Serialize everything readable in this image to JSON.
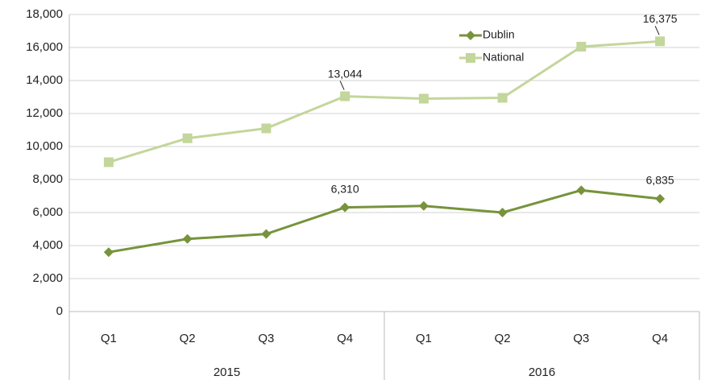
{
  "chart_data": {
    "type": "line",
    "categories": [
      "Q1",
      "Q2",
      "Q3",
      "Q4",
      "Q1",
      "Q2",
      "Q3",
      "Q4"
    ],
    "category_groups": [
      "2015",
      "2016"
    ],
    "series": [
      {
        "name": "Dublin",
        "color": "#77933c",
        "marker": "diamond",
        "values": [
          3600,
          4400,
          4700,
          6310,
          6400,
          6000,
          7350,
          6835
        ],
        "value_labels": [
          null,
          null,
          null,
          "6,310",
          null,
          null,
          null,
          "6,835"
        ]
      },
      {
        "name": "National",
        "color": "#c3d69b",
        "marker": "square",
        "values": [
          9050,
          10500,
          11100,
          13044,
          12900,
          12950,
          16050,
          16375
        ],
        "value_labels": [
          null,
          null,
          null,
          "13,044",
          null,
          null,
          null,
          "16,375"
        ]
      }
    ],
    "ylim": [
      0,
      18000
    ],
    "yticks": [
      0,
      {
        "value": 2000,
        "label": "2,000"
      },
      {
        "value": 4000,
        "label": "4,000"
      },
      {
        "value": 6000,
        "label": "6,000"
      },
      {
        "value": 8000,
        "label": "8,000"
      },
      {
        "value": 10000,
        "label": "10,000"
      },
      {
        "value": 12000,
        "label": "12,000"
      },
      {
        "value": 14000,
        "label": "14,000"
      },
      {
        "value": 16000,
        "label": "16,000"
      },
      {
        "value": 18000,
        "label": "18,000"
      }
    ],
    "grid": true,
    "legend": "top-right"
  }
}
